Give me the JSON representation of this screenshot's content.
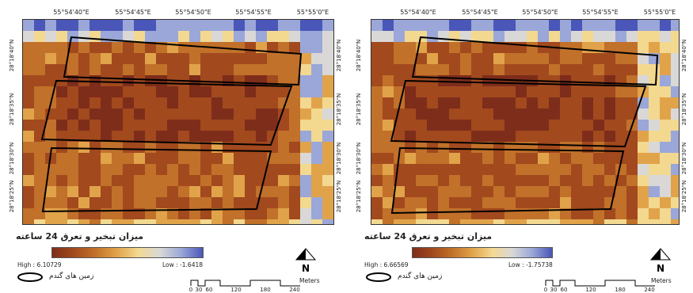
{
  "palette": {
    "dark": "#7e2d1a",
    "mid_dark": "#a2491e",
    "mid": "#c1712a",
    "light": "#e1a34a",
    "pale": "#f3d890",
    "neutral": "#d9d8d6",
    "blue_light": "#9aa7d8",
    "blue": "#4a57b8",
    "field_outline": "#000000"
  },
  "left": {
    "lon_ticks": [
      "55°54'40\"E",
      "55°54'45\"E",
      "55°54'50\"E",
      "55°54'55\"E",
      "55°55'0\"E"
    ],
    "lat_ticks": [
      "28°18'40\"N",
      "28°18'35\"N",
      "28°18'30\"N",
      "28°18'25\"N"
    ],
    "legend_title": "میزان تبخیر و تعرق 24 ساعته",
    "high_label": "High : 6.10729",
    "low_label": "Low : -1.6418",
    "boundary_label": "زمین های گندم",
    "north_letter": "N",
    "scale_unit": "Meters",
    "scale_numbers": [
      "0",
      "30",
      "60",
      "120",
      "180",
      "240"
    ]
  },
  "right": {
    "lon_ticks": [
      "55°54'40\"E",
      "55°54'45\"E",
      "55°54'50\"E",
      "55°54'55\"E",
      "55°55'0\"E"
    ],
    "lat_ticks": [
      "28°18'40\"N",
      "28°18'35\"N",
      "28°18'30\"N",
      "28°18'25\"N"
    ],
    "legend_title": "میزان تبخیر و تعرق 24 ساعته",
    "high_label": "High : 6.66569",
    "low_label": "Low : -1.75738",
    "boundary_label": "زمین های گندم",
    "north_letter": "N",
    "scale_unit": "Meters",
    "scale_numbers": [
      "0",
      "30",
      "60",
      "120",
      "180",
      "240"
    ]
  }
}
